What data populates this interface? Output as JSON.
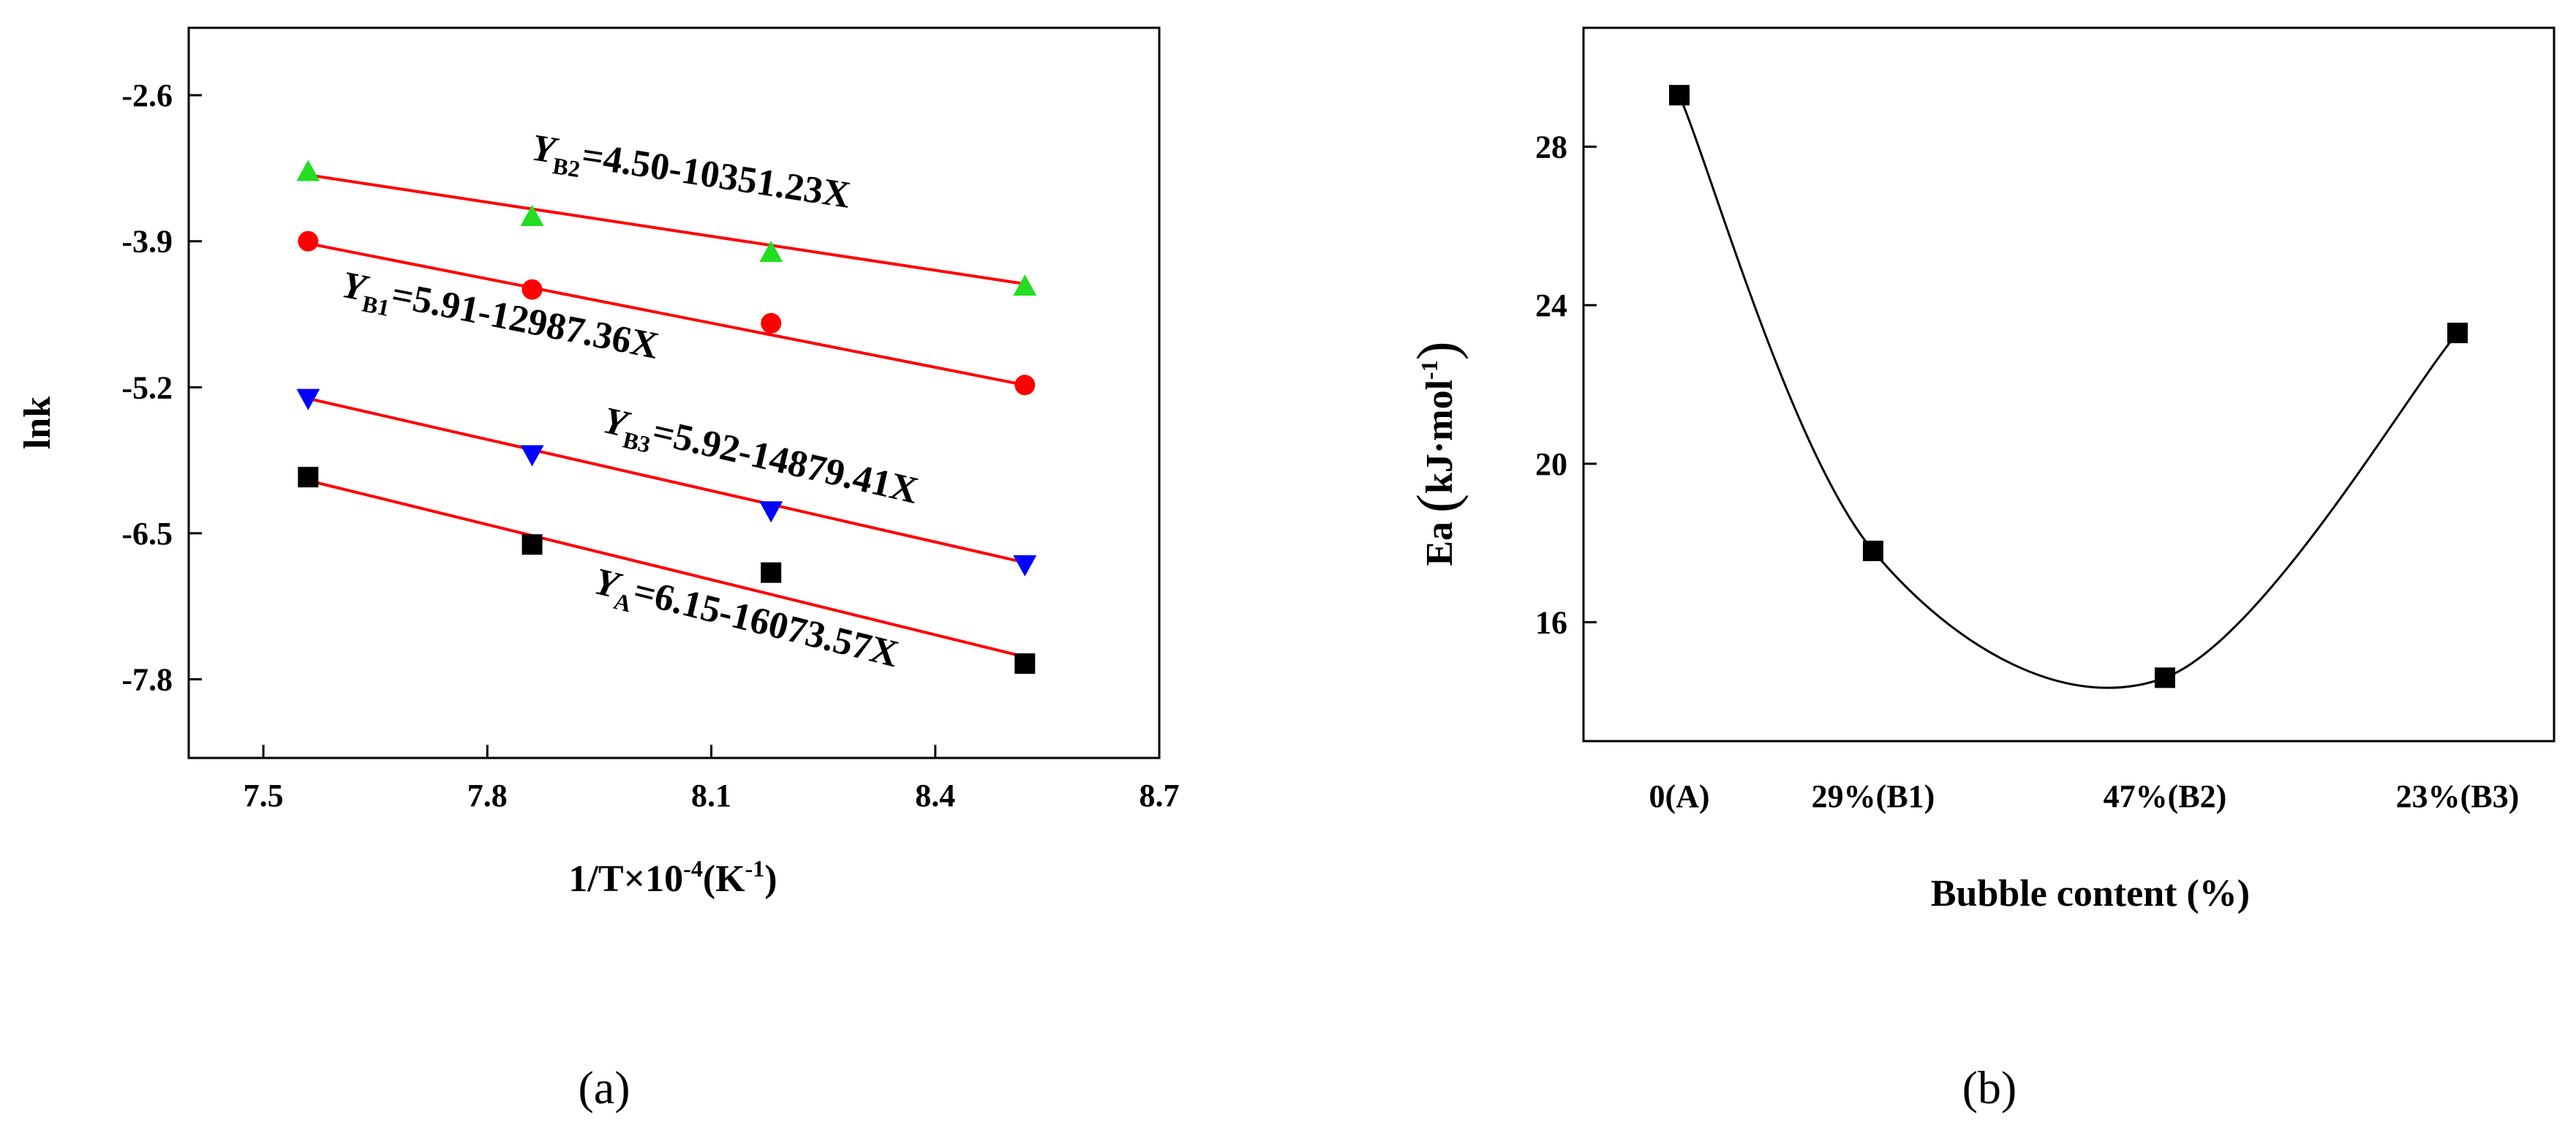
{
  "chart_data": [
    {
      "type": "scatter",
      "panel_label": "(a)",
      "xlabel_main": "1/T×10",
      "xlabel_exp": "-4",
      "xlabel_tail": "(K",
      "xlabel_unit_exp": "-1",
      "xlabel_close": ")",
      "ylabel": "lnk",
      "xlim": [
        7.4,
        8.7
      ],
      "ylim": [
        -8.5,
        -2.0
      ],
      "xticks": [
        7.5,
        7.8,
        8.1,
        8.4,
        8.7
      ],
      "xtick_labels": [
        "7.5",
        "7.8",
        "8.1",
        "8.4",
        "8.7"
      ],
      "yticks": [
        -2.6,
        -3.9,
        -5.2,
        -6.5,
        -7.8
      ],
      "ytick_labels": [
        "-2.6",
        "-3.9",
        "-5.2",
        "-6.5",
        "-7.8"
      ],
      "series": [
        {
          "key": "B2",
          "marker": "triangle-up",
          "marker_color": "#22dd22",
          "line_color": "#ff0000",
          "x": [
            7.56,
            7.86,
            8.18,
            8.52
          ],
          "y": [
            -3.28,
            -3.68,
            -4.0,
            -4.3
          ],
          "fit": [
            [
              7.56,
              -3.31
            ],
            [
              8.52,
              -4.28
            ]
          ],
          "label_main": "Y",
          "label_sub": "B2",
          "label_rest": "=4.50-10351.23X"
        },
        {
          "key": "B1",
          "marker": "circle",
          "marker_color": "#ff0000",
          "line_color": "#ff0000",
          "x": [
            7.56,
            7.86,
            8.18,
            8.52
          ],
          "y": [
            -3.9,
            -4.33,
            -4.63,
            -5.18
          ],
          "fit": [
            [
              7.56,
              -3.92
            ],
            [
              8.52,
              -5.18
            ]
          ],
          "label_main": "Y",
          "label_sub": "B1",
          "label_rest": "=5.91-12987.36X"
        },
        {
          "key": "B3",
          "marker": "triangle-down",
          "marker_color": "#0000ff",
          "line_color": "#ff0000",
          "x": [
            7.56,
            7.86,
            8.18,
            8.52
          ],
          "y": [
            -5.3,
            -5.8,
            -6.3,
            -6.78
          ],
          "fit": [
            [
              7.56,
              -5.3
            ],
            [
              8.52,
              -6.76
            ]
          ],
          "label_main": "Y",
          "label_sub": "B3",
          "label_rest": "=5.92-14879.41X"
        },
        {
          "key": "A",
          "marker": "square",
          "marker_color": "#000000",
          "line_color": "#ff0000",
          "x": [
            7.56,
            7.86,
            8.18,
            8.52
          ],
          "y": [
            -6.0,
            -6.6,
            -6.85,
            -7.66
          ],
          "fit": [
            [
              7.56,
              -6.03
            ],
            [
              8.52,
              -7.6
            ]
          ],
          "label_main": "Y",
          "label_sub": "A",
          "label_rest": "=6.15-16073.57X"
        }
      ]
    },
    {
      "type": "line",
      "panel_label": "(b)",
      "xlabel": "Bubble content (%)",
      "ylabel_main": "Ea",
      "ylabel_unit": "kJ·mol",
      "ylabel_exp": "-1",
      "categories": [
        "0(A)",
        "29%(B1)",
        "47%(B2)",
        "23%(B3)"
      ],
      "ylim": [
        13,
        31
      ],
      "yticks": [
        16,
        20,
        24,
        28
      ],
      "ytick_labels": [
        "16",
        "20",
        "24",
        "28"
      ],
      "values": [
        29.3,
        17.8,
        14.6,
        23.3
      ],
      "smooth_curve": true,
      "marker": "square",
      "color": "#000000"
    }
  ]
}
